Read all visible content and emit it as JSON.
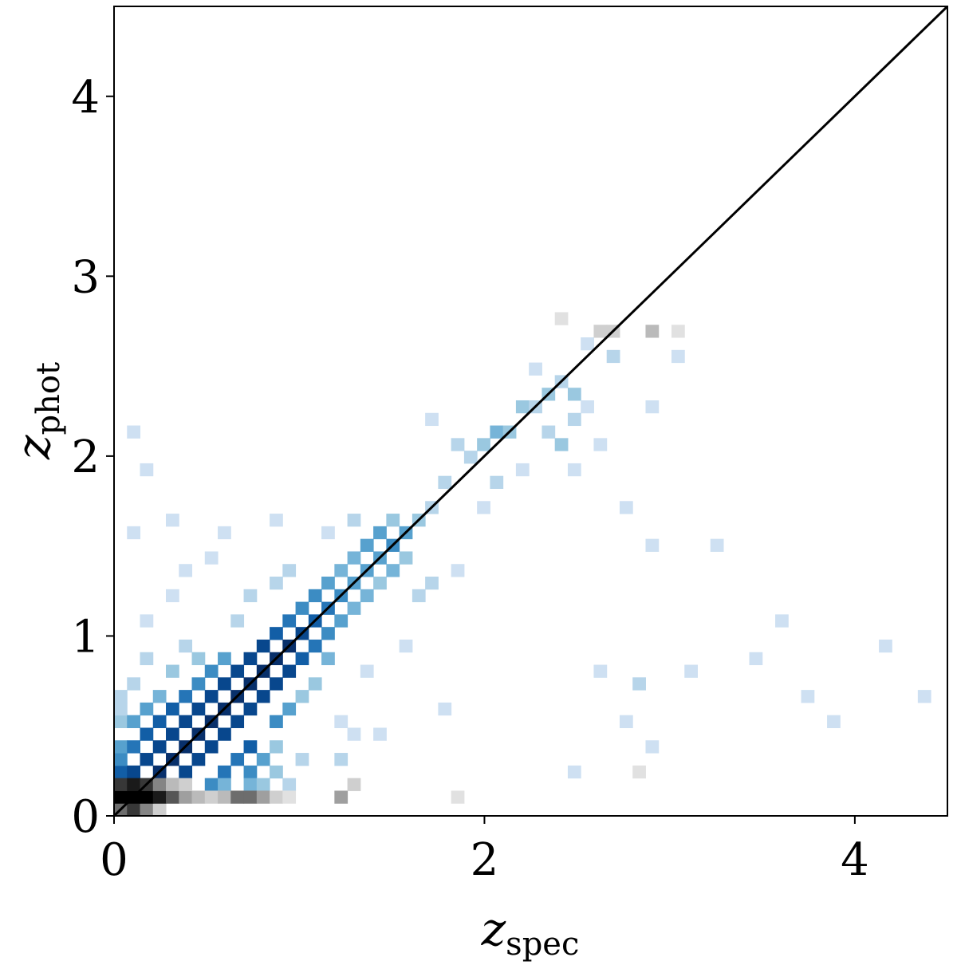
{
  "chart_data": {
    "type": "hist2d",
    "xlabel": {
      "symbol": "z",
      "subscript": "spec"
    },
    "ylabel": {
      "symbol": "z",
      "subscript": "phot"
    },
    "xlim": [
      0,
      4.5
    ],
    "ylim": [
      0,
      4.5
    ],
    "xticks": [
      0,
      2,
      4
    ],
    "yticks": [
      0,
      1,
      2,
      3,
      4
    ],
    "bin_size": 0.07,
    "identity_line": true,
    "series": [
      {
        "colormap": "Blues",
        "cells": [
          [
            0.07,
            0.07,
            10
          ],
          [
            0.14,
            0.14,
            10
          ],
          [
            0.21,
            0.21,
            10
          ],
          [
            0.28,
            0.28,
            10
          ],
          [
            0.35,
            0.35,
            10
          ],
          [
            0.42,
            0.42,
            10
          ],
          [
            0.49,
            0.49,
            10
          ],
          [
            0.56,
            0.56,
            10
          ],
          [
            0.63,
            0.63,
            10
          ],
          [
            0.7,
            0.7,
            10
          ],
          [
            0.77,
            0.77,
            10
          ],
          [
            0.84,
            0.84,
            10
          ],
          [
            0.91,
            0.91,
            10
          ],
          [
            0.98,
            0.98,
            9
          ],
          [
            1.05,
            1.05,
            8
          ],
          [
            1.12,
            1.12,
            7
          ],
          [
            1.19,
            1.19,
            6
          ],
          [
            1.26,
            1.26,
            5
          ],
          [
            1.33,
            1.33,
            5
          ],
          [
            1.4,
            1.4,
            5
          ],
          [
            1.47,
            1.47,
            6
          ],
          [
            1.54,
            1.54,
            5
          ],
          [
            1.61,
            1.61,
            3
          ],
          [
            1.68,
            1.68,
            2
          ],
          [
            1.75,
            1.82,
            2
          ],
          [
            1.89,
            1.96,
            2
          ],
          [
            1.96,
            2.03,
            3
          ],
          [
            2.03,
            2.1,
            4
          ],
          [
            2.1,
            2.1,
            3
          ],
          [
            2.17,
            2.24,
            3
          ],
          [
            2.24,
            2.24,
            2
          ],
          [
            2.31,
            2.31,
            3
          ],
          [
            2.38,
            2.38,
            2
          ],
          [
            2.45,
            2.31,
            3
          ],
          [
            2.45,
            2.17,
            2
          ],
          [
            0,
            0.21,
            8
          ],
          [
            0,
            0.28,
            6
          ],
          [
            0,
            0.35,
            5
          ],
          [
            0,
            0.49,
            3
          ],
          [
            0,
            0.56,
            2
          ],
          [
            0.07,
            0.21,
            9
          ],
          [
            0.07,
            0.35,
            7
          ],
          [
            0.07,
            0.49,
            5
          ],
          [
            0.14,
            0.28,
            9
          ],
          [
            0.14,
            0.42,
            8
          ],
          [
            0.14,
            0.56,
            5
          ],
          [
            0.21,
            0.35,
            9
          ],
          [
            0.21,
            0.49,
            8
          ],
          [
            0.21,
            0.63,
            4
          ],
          [
            0.28,
            0.42,
            9
          ],
          [
            0.28,
            0.56,
            8
          ],
          [
            0.35,
            0.49,
            9
          ],
          [
            0.35,
            0.63,
            7
          ],
          [
            0.42,
            0.56,
            9
          ],
          [
            0.42,
            0.7,
            6
          ],
          [
            0.49,
            0.63,
            9
          ],
          [
            0.49,
            0.77,
            6
          ],
          [
            0.56,
            0.7,
            9
          ],
          [
            0.56,
            0.84,
            5
          ],
          [
            0.63,
            0.77,
            9
          ],
          [
            0.7,
            0.84,
            9
          ],
          [
            0.77,
            0.91,
            9
          ],
          [
            0.84,
            0.98,
            8
          ],
          [
            0.91,
            1.05,
            7
          ],
          [
            0.98,
            1.12,
            6
          ],
          [
            1.05,
            1.19,
            6
          ],
          [
            1.12,
            1.26,
            5
          ],
          [
            1.19,
            1.33,
            4
          ],
          [
            1.26,
            1.4,
            4
          ],
          [
            1.33,
            1.47,
            5
          ],
          [
            1.4,
            1.54,
            5
          ],
          [
            1.47,
            1.61,
            3
          ],
          [
            0.14,
            0.07,
            8
          ],
          [
            0.28,
            0.14,
            9
          ],
          [
            0.35,
            0.21,
            9
          ],
          [
            0.42,
            0.28,
            9
          ],
          [
            0.49,
            0.35,
            9
          ],
          [
            0.56,
            0.42,
            9
          ],
          [
            0.63,
            0.49,
            9
          ],
          [
            0.7,
            0.56,
            9
          ],
          [
            0.77,
            0.63,
            9
          ],
          [
            0.84,
            0.7,
            9
          ],
          [
            0.91,
            0.77,
            9
          ],
          [
            0.98,
            0.84,
            8
          ],
          [
            1.05,
            0.91,
            7
          ],
          [
            1.12,
            0.98,
            6
          ],
          [
            1.19,
            1.05,
            5
          ],
          [
            1.26,
            1.12,
            4
          ],
          [
            1.33,
            1.19,
            4
          ],
          [
            1.4,
            1.26,
            3
          ],
          [
            1.47,
            1.33,
            4
          ],
          [
            1.54,
            1.4,
            3
          ],
          [
            0.7,
            0.35,
            8
          ],
          [
            0.7,
            0.21,
            6
          ],
          [
            0.63,
            0.28,
            7
          ],
          [
            0.77,
            0.28,
            5
          ],
          [
            0.49,
            0.14,
            6
          ],
          [
            0.56,
            0.21,
            7
          ],
          [
            0.84,
            0.49,
            6
          ],
          [
            0.91,
            0.56,
            5
          ],
          [
            0.98,
            0.63,
            3
          ],
          [
            1.05,
            0.7,
            3
          ],
          [
            1.12,
            0.84,
            4
          ],
          [
            0.56,
            0.14,
            4
          ],
          [
            0.84,
            0.35,
            3
          ],
          [
            0,
            0.63,
            2
          ],
          [
            0.07,
            0.7,
            2
          ],
          [
            0.14,
            0.84,
            2
          ],
          [
            0.28,
            0.77,
            3
          ],
          [
            0.35,
            0.91,
            2
          ],
          [
            0.42,
            0.84,
            3
          ],
          [
            0.63,
            1.05,
            2
          ],
          [
            0.7,
            1.19,
            2
          ],
          [
            0.91,
            1.33,
            2
          ],
          [
            0.28,
            1.19,
            1
          ],
          [
            0.14,
            1.05,
            1
          ],
          [
            0.07,
            1.54,
            1
          ],
          [
            0.14,
            1.89,
            1
          ],
          [
            0.07,
            2.1,
            1
          ],
          [
            0.28,
            1.61,
            1
          ],
          [
            0.49,
            1.4,
            1
          ],
          [
            0.56,
            1.54,
            1
          ],
          [
            0.84,
            1.61,
            1
          ],
          [
            1.19,
            0.49,
            1
          ],
          [
            1.33,
            0.77,
            1
          ],
          [
            1.4,
            0.42,
            1
          ],
          [
            1.54,
            0.91,
            1
          ],
          [
            1.75,
            0.56,
            1
          ],
          [
            1.96,
            1.68,
            1
          ],
          [
            2.03,
            1.82,
            2
          ],
          [
            1.82,
            2.03,
            2
          ],
          [
            2.17,
            1.89,
            1
          ],
          [
            2.38,
            2.03,
            3
          ],
          [
            2.31,
            2.1,
            2
          ],
          [
            2.52,
            2.24,
            1
          ],
          [
            2.66,
            2.52,
            2
          ],
          [
            2.59,
            2.03,
            1
          ],
          [
            2.87,
            2.24,
            1
          ],
          [
            3.01,
            2.52,
            1
          ],
          [
            2.73,
            1.68,
            1
          ],
          [
            2.87,
            1.47,
            1
          ],
          [
            3.22,
            1.47,
            1
          ],
          [
            2.59,
            0.77,
            1
          ],
          [
            2.8,
            0.7,
            2
          ],
          [
            2.87,
            0.35,
            1
          ],
          [
            3.08,
            0.77,
            1
          ],
          [
            3.43,
            0.84,
            1
          ],
          [
            3.71,
            0.63,
            1
          ],
          [
            3.85,
            0.49,
            1
          ],
          [
            4.13,
            0.91,
            1
          ],
          [
            3.57,
            1.05,
            1
          ],
          [
            4.34,
            0.63,
            1
          ],
          [
            2.45,
            0.21,
            1
          ],
          [
            2.73,
            0.49,
            1
          ],
          [
            1.68,
            2.17,
            1
          ],
          [
            2.24,
            2.45,
            1
          ],
          [
            2.52,
            2.59,
            1
          ],
          [
            2.45,
            1.89,
            1
          ],
          [
            1.26,
            1.61,
            2
          ],
          [
            1.12,
            1.54,
            1
          ],
          [
            0.35,
            1.33,
            1
          ],
          [
            1.61,
            1.19,
            2
          ],
          [
            1.68,
            1.26,
            2
          ],
          [
            1.82,
            1.33,
            1
          ],
          [
            0.84,
            1.26,
            2
          ],
          [
            1.26,
            0.42,
            1
          ],
          [
            1.19,
            0.28,
            2
          ],
          [
            0.98,
            0.28,
            2
          ],
          [
            0.84,
            0.21,
            3
          ],
          [
            0.91,
            0.14,
            2
          ],
          [
            0.7,
            0.14,
            4
          ],
          [
            0.77,
            0.14,
            3
          ]
        ]
      },
      {
        "colormap": "Greys",
        "cells": [
          [
            0,
            0,
            6
          ],
          [
            0.07,
            0,
            8
          ],
          [
            0.14,
            0,
            5
          ],
          [
            0.21,
            0,
            2
          ],
          [
            0,
            0.07,
            10
          ],
          [
            0.07,
            0.07,
            10
          ],
          [
            0.14,
            0.07,
            10
          ],
          [
            0.21,
            0.07,
            9
          ],
          [
            0.28,
            0.07,
            7
          ],
          [
            0.35,
            0.07,
            4
          ],
          [
            0.42,
            0.07,
            3
          ],
          [
            0.49,
            0.07,
            2
          ],
          [
            0.56,
            0.07,
            3
          ],
          [
            0.63,
            0.07,
            6
          ],
          [
            0.7,
            0.07,
            6
          ],
          [
            0.77,
            0.07,
            4
          ],
          [
            0.84,
            0.07,
            2
          ],
          [
            0.91,
            0.07,
            1
          ],
          [
            1.19,
            0.07,
            4
          ],
          [
            1.82,
            0.07,
            1
          ],
          [
            0,
            0.14,
            8
          ],
          [
            0.07,
            0.14,
            9
          ],
          [
            0.14,
            0.14,
            8
          ],
          [
            0.21,
            0.14,
            5
          ],
          [
            0.28,
            0.14,
            3
          ],
          [
            0.35,
            0.14,
            2
          ],
          [
            1.26,
            0.14,
            2
          ],
          [
            2.59,
            2.66,
            2
          ],
          [
            2.66,
            2.66,
            2
          ],
          [
            2.38,
            2.73,
            1
          ],
          [
            2.87,
            2.66,
            3
          ],
          [
            3.01,
            2.66,
            1
          ],
          [
            2.8,
            0.21,
            1
          ]
        ]
      }
    ]
  }
}
